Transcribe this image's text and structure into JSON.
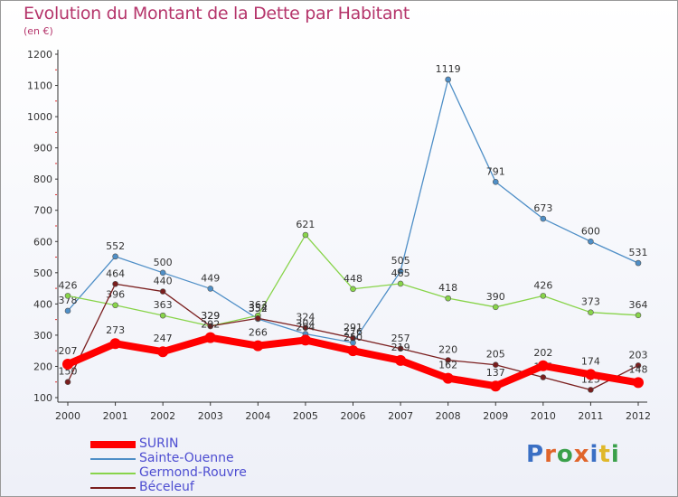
{
  "title": "Evolution du Montant de la Dette par Habitant",
  "subtitle": "(en €)",
  "logo": "Proxiti",
  "chart_data": {
    "type": "line",
    "title": "Evolution du Montant de la Dette par Habitant",
    "subtitle": "(en €)",
    "x": [
      "2000",
      "2001",
      "2002",
      "2003",
      "2004",
      "2005",
      "2006",
      "2007",
      "2008",
      "2009",
      "2010",
      "2011",
      "2012"
    ],
    "y_ticks": [
      100,
      200,
      300,
      400,
      500,
      600,
      700,
      800,
      900,
      1000,
      1100,
      1200
    ],
    "ylim": [
      100,
      1200
    ],
    "grid": false,
    "legend_position": "bottom-left",
    "series": [
      {
        "name": "SURIN",
        "color": "#ff0000",
        "values": [
          207,
          273,
          247,
          292,
          266,
          284,
          250,
          219,
          162,
          137,
          202,
          174,
          148
        ]
      },
      {
        "name": "Sainte-Ouenne",
        "color": "#4f8fc7",
        "values": [
          378,
          552,
          500,
          449,
          352,
          304,
          276,
          505,
          1119,
          791,
          673,
          600,
          531
        ]
      },
      {
        "name": "Germond-Rouvre",
        "color": "#88d44a",
        "values": [
          426,
          396,
          363,
          329,
          363,
          621,
          448,
          465,
          418,
          390,
          426,
          373,
          364
        ]
      },
      {
        "name": "Béceleuf",
        "color": "#7a1e1e",
        "values": [
          150,
          464,
          440,
          329,
          354,
          324,
          291,
          257,
          220,
          205,
          165,
          125,
          203
        ]
      }
    ]
  }
}
